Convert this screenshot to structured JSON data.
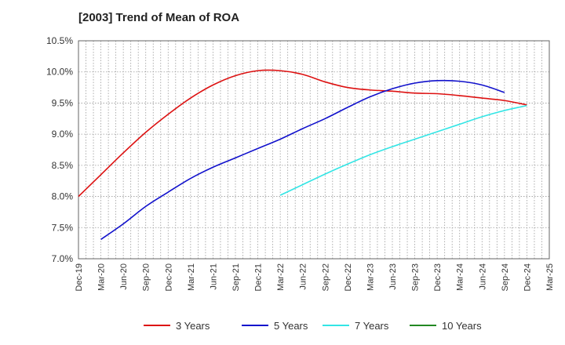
{
  "chart_data": {
    "type": "line",
    "title": "[2003]  Trend of Mean of ROA",
    "xlabel": "",
    "ylabel": "",
    "x_ticks": [
      "Dec-19",
      "Mar-20",
      "Jun-20",
      "Sep-20",
      "Dec-20",
      "Mar-21",
      "Jun-21",
      "Sep-21",
      "Dec-21",
      "Mar-22",
      "Jun-22",
      "Sep-22",
      "Dec-22",
      "Mar-23",
      "Jun-23",
      "Sep-23",
      "Dec-23",
      "Mar-24",
      "Jun-24",
      "Sep-24",
      "Dec-24",
      "Mar-25"
    ],
    "y_ticks": [
      "7.0%",
      "7.5%",
      "8.0%",
      "8.5%",
      "9.0%",
      "9.5%",
      "10.0%",
      "10.5%"
    ],
    "ylim": [
      7.0,
      10.5
    ],
    "y_unit": "%",
    "grid": true,
    "legend_position": "bottom",
    "series": [
      {
        "name": "3 Years",
        "color": "#dd1111",
        "start_index": 0,
        "values": [
          8.0,
          8.35,
          8.7,
          9.03,
          9.32,
          9.58,
          9.79,
          9.94,
          10.02,
          10.02,
          9.96,
          9.84,
          9.75,
          9.71,
          9.69,
          9.66,
          9.65,
          9.62,
          9.58,
          9.54,
          9.47
        ]
      },
      {
        "name": "5 Years",
        "color": "#1111cc",
        "start_index": 1,
        "values": [
          7.31,
          7.56,
          7.84,
          8.07,
          8.29,
          8.47,
          8.62,
          8.77,
          8.92,
          9.09,
          9.25,
          9.43,
          9.6,
          9.73,
          9.82,
          9.86,
          9.85,
          9.79,
          9.67
        ]
      },
      {
        "name": "7 Years",
        "color": "#33e5e5",
        "start_index": 9,
        "values": [
          8.02,
          8.19,
          8.36,
          8.52,
          8.67,
          8.8,
          8.92,
          9.04,
          9.16,
          9.28,
          9.38,
          9.46
        ]
      },
      {
        "name": "10 Years",
        "color": "#228822",
        "start_index": 0,
        "values": []
      }
    ]
  }
}
